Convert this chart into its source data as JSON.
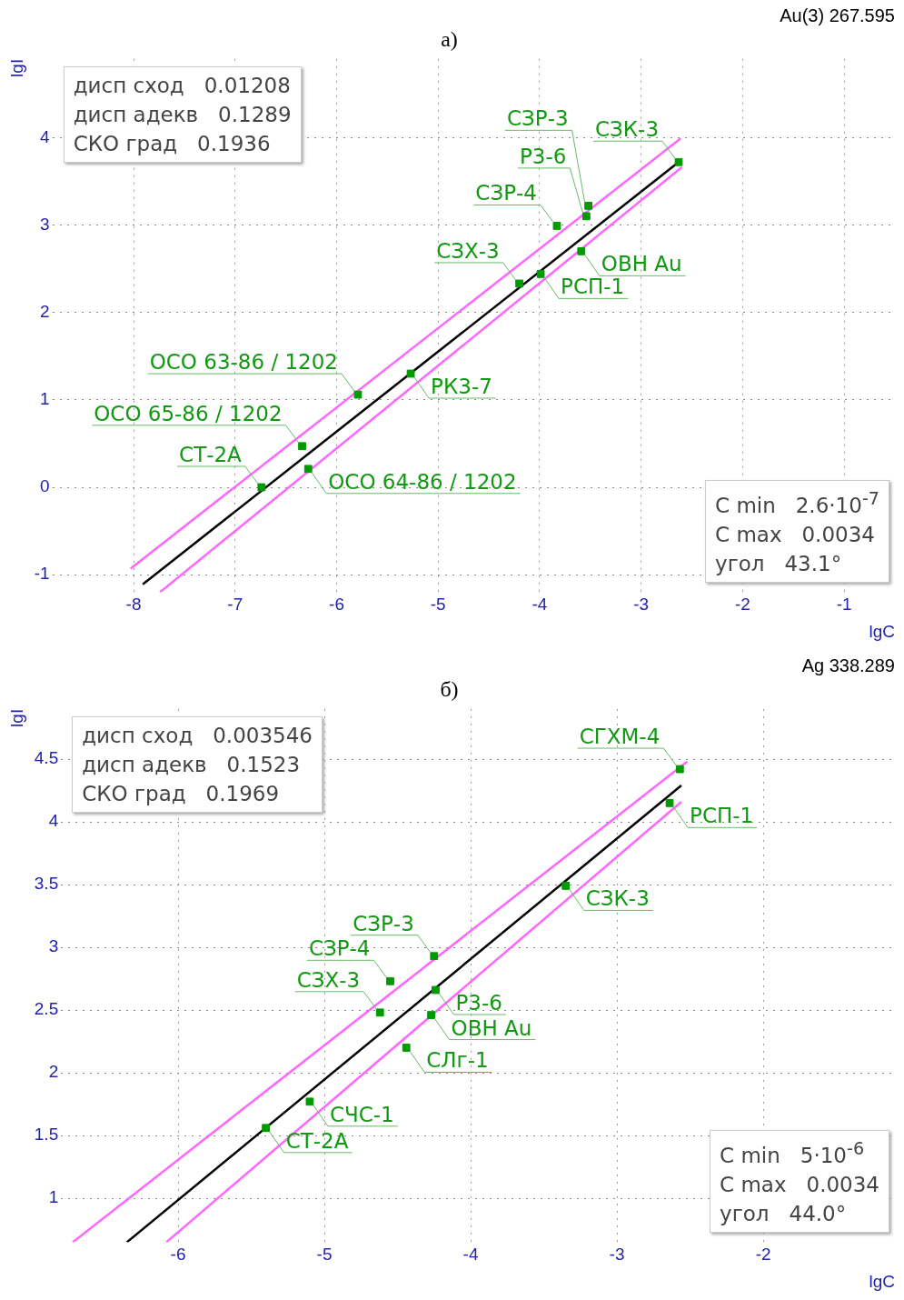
{
  "chart_data": [
    {
      "type": "scatter",
      "title": "Au(3) 267.595",
      "subtitle": "а)",
      "xlabel": "lgC",
      "ylabel": "lgI",
      "xlim": [
        -8.8,
        -0.5
      ],
      "ylim": [
        -1.2,
        4.9
      ],
      "xticks": [
        -8,
        -7,
        -6,
        -5,
        -4,
        -3,
        -2,
        -1
      ],
      "yticks": [
        -1,
        0,
        1,
        2,
        3,
        4
      ],
      "grid": true,
      "legend": false,
      "marker": "square",
      "series": [
        {
          "color": "#009900",
          "x": [
            -6.74,
            -6.34,
            -6.28,
            -5.79,
            -5.27,
            -4.2,
            -3.99,
            -3.59,
            -3.83,
            -3.54,
            -3.52,
            -2.63
          ],
          "values": [
            0.0,
            0.47,
            0.21,
            1.06,
            1.3,
            2.33,
            2.44,
            2.7,
            2.99,
            3.1,
            3.22,
            3.72
          ]
        },
        {
          "type": "line",
          "color": "#000000",
          "marker": "none",
          "x": [
            -7.91,
            -2.63
          ],
          "values": [
            -1.11,
            3.72
          ]
        },
        {
          "type": "line",
          "color": "#ff66ff",
          "marker": "none",
          "x": [
            -8.03,
            -2.61
          ],
          "values": [
            -0.93,
            3.99
          ]
        },
        {
          "type": "line",
          "color": "#ff66ff",
          "marker": "none",
          "x": [
            -7.74,
            -2.6
          ],
          "values": [
            -1.2,
            3.66
          ]
        }
      ],
      "annotations": [
        "дисп сход   0.01208",
        "дисп адекв   0.1289",
        "СКО град   0.1936",
        "C min   2.6·10$^{-7}$",
        "C max   0.0034",
        "угол   43.1°",
        {
          "text": "СТ-2А",
          "x": -6.74,
          "y": 0.0
        },
        {
          "text": "ОСО 65-86 / 1202",
          "x": -6.34,
          "y": 0.47
        },
        {
          "text": "ОСО 64-86 / 1202",
          "x": -6.28,
          "y": 0.21
        },
        {
          "text": "ОСО 63-86 / 1202",
          "x": -5.79,
          "y": 1.06
        },
        {
          "text": "РК3-7",
          "x": -5.27,
          "y": 1.3
        },
        {
          "text": "СЗХ-3",
          "x": -4.2,
          "y": 2.33
        },
        {
          "text": "РСП-1",
          "x": -3.99,
          "y": 2.44
        },
        {
          "text": "ОВН Au",
          "x": -3.59,
          "y": 2.7
        },
        {
          "text": "СЗР-4",
          "x": -3.83,
          "y": 2.99
        },
        {
          "text": "Р3-6",
          "x": -3.54,
          "y": 3.1
        },
        {
          "text": "СЗР-3",
          "x": -3.52,
          "y": 3.22
        },
        {
          "text": "СЗК-3",
          "x": -2.63,
          "y": 3.72
        }
      ]
    },
    {
      "type": "scatter",
      "title": "Ag 338.289",
      "subtitle": "б)",
      "xlabel": "lgC",
      "ylabel": "lgI",
      "xlim": [
        -6.8,
        -1.1
      ],
      "ylim": [
        0.65,
        4.9
      ],
      "xticks": [
        -6,
        -5,
        -4,
        -3,
        -2
      ],
      "yticks": [
        1,
        1.5,
        2,
        2.5,
        3,
        3.5,
        4,
        4.5
      ],
      "grid": true,
      "legend": false,
      "marker": "square",
      "series": [
        {
          "color": "#009900",
          "x": [
            -5.4,
            -5.1,
            -4.44,
            -4.62,
            -4.27,
            -4.24,
            -4.55,
            -4.25,
            -3.35,
            -2.64,
            -2.57
          ],
          "values": [
            1.56,
            1.77,
            2.2,
            2.48,
            2.46,
            2.66,
            2.73,
            2.93,
            3.49,
            4.15,
            4.42
          ]
        },
        {
          "type": "line",
          "color": "#000000",
          "marker": "none",
          "x": [
            -6.35,
            -2.56
          ],
          "values": [
            0.65,
            4.29
          ]
        },
        {
          "type": "line",
          "color": "#ff66ff",
          "marker": "none",
          "x": [
            -6.72,
            -2.52
          ],
          "values": [
            0.65,
            4.48
          ]
        },
        {
          "type": "line",
          "color": "#ff66ff",
          "marker": "none",
          "x": [
            -6.08,
            -2.56
          ],
          "values": [
            0.65,
            4.16
          ]
        }
      ],
      "annotations": [
        "дисп сход   0.003546",
        "дисп адекв   0.1523",
        "СКО град   0.1969",
        "C min   5·10$^{-6}$",
        "C max   0.0034",
        "угол   44.0°",
        {
          "text": "СТ-2А",
          "x": -5.4,
          "y": 1.56
        },
        {
          "text": "СЧС-1",
          "x": -5.1,
          "y": 1.77
        },
        {
          "text": "СЛг-1",
          "x": -4.44,
          "y": 2.2
        },
        {
          "text": "СЗХ-3",
          "x": -4.62,
          "y": 2.48
        },
        {
          "text": "ОВН Au",
          "x": -4.27,
          "y": 2.46
        },
        {
          "text": "Р3-6",
          "x": -4.24,
          "y": 2.66
        },
        {
          "text": "СЗР-4",
          "x": -4.55,
          "y": 2.73
        },
        {
          "text": "СЗР-3",
          "x": -4.25,
          "y": 2.93
        },
        {
          "text": "СЗК-3",
          "x": -3.35,
          "y": 3.49
        },
        {
          "text": "РСП-1",
          "x": -2.64,
          "y": 4.15
        },
        {
          "text": "СГХМ-4",
          "x": -2.57,
          "y": 4.42
        }
      ]
    }
  ]
}
